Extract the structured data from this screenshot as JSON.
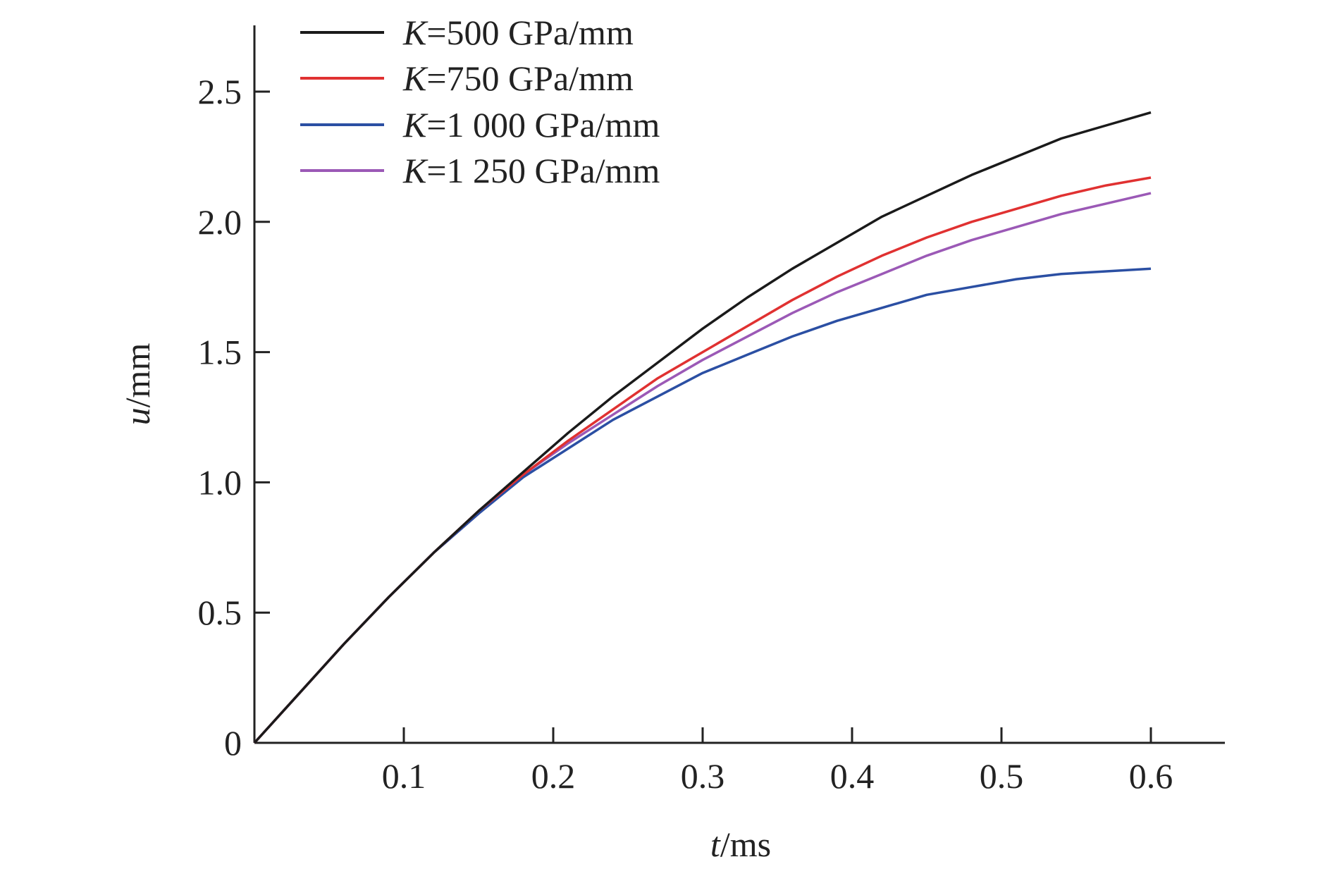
{
  "chart_data": {
    "type": "line",
    "title": "",
    "xlabel": {
      "italic": "t",
      "rest": "/ms"
    },
    "ylabel": {
      "italic": "u",
      "rest": "/mm"
    },
    "xlim": [
      0,
      0.65
    ],
    "ylim": [
      0,
      2.75
    ],
    "xticks": [
      0.1,
      0.2,
      0.3,
      0.4,
      0.5,
      0.6
    ],
    "xtick_labels": [
      "0.1",
      "0.2",
      "0.3",
      "0.4",
      "0.5",
      "0.6"
    ],
    "yticks": [
      0,
      0.5,
      1.0,
      1.5,
      2.0,
      2.5
    ],
    "ytick_labels": [
      "0",
      "0.5",
      "1.0",
      "1.5",
      "2.0",
      "2.5"
    ],
    "grid": false,
    "legend_position": "top-left",
    "x": [
      0,
      0.03,
      0.06,
      0.09,
      0.12,
      0.15,
      0.18,
      0.21,
      0.24,
      0.27,
      0.3,
      0.33,
      0.36,
      0.39,
      0.42,
      0.45,
      0.48,
      0.51,
      0.54,
      0.57,
      0.6
    ],
    "series": [
      {
        "name": "K=500 GPa/mm",
        "label_italic": "K",
        "label_rest": "=500 GPa/mm",
        "color": "#1a1a1a",
        "values": [
          0,
          0.19,
          0.38,
          0.56,
          0.73,
          0.89,
          1.04,
          1.19,
          1.33,
          1.46,
          1.59,
          1.71,
          1.82,
          1.92,
          2.02,
          2.1,
          2.18,
          2.25,
          2.32,
          2.37,
          2.42
        ]
      },
      {
        "name": "K=750 GPa/mm",
        "label_italic": "K",
        "label_rest": "=750 GPa/mm",
        "color": "#e03131",
        "values": [
          0,
          0.19,
          0.38,
          0.56,
          0.73,
          0.89,
          1.03,
          1.16,
          1.28,
          1.4,
          1.5,
          1.6,
          1.7,
          1.79,
          1.87,
          1.94,
          2.0,
          2.05,
          2.1,
          2.14,
          2.17
        ]
      },
      {
        "name": "K=1 000 GPa/mm",
        "label_italic": "K",
        "label_rest": "=1 000 GPa/mm",
        "color": "#2b4fa3",
        "values": [
          0,
          0.19,
          0.38,
          0.56,
          0.73,
          0.88,
          1.02,
          1.13,
          1.24,
          1.33,
          1.42,
          1.49,
          1.56,
          1.62,
          1.67,
          1.72,
          1.75,
          1.78,
          1.8,
          1.81,
          1.82
        ]
      },
      {
        "name": "K=1 250 GPa/mm",
        "label_italic": "K",
        "label_rest": "=1 250 GPa/mm",
        "color": "#9b59b6",
        "values": [
          0,
          0.19,
          0.38,
          0.56,
          0.73,
          0.88,
          1.03,
          1.15,
          1.26,
          1.37,
          1.47,
          1.56,
          1.65,
          1.73,
          1.8,
          1.87,
          1.93,
          1.98,
          2.03,
          2.07,
          2.11
        ]
      }
    ]
  }
}
